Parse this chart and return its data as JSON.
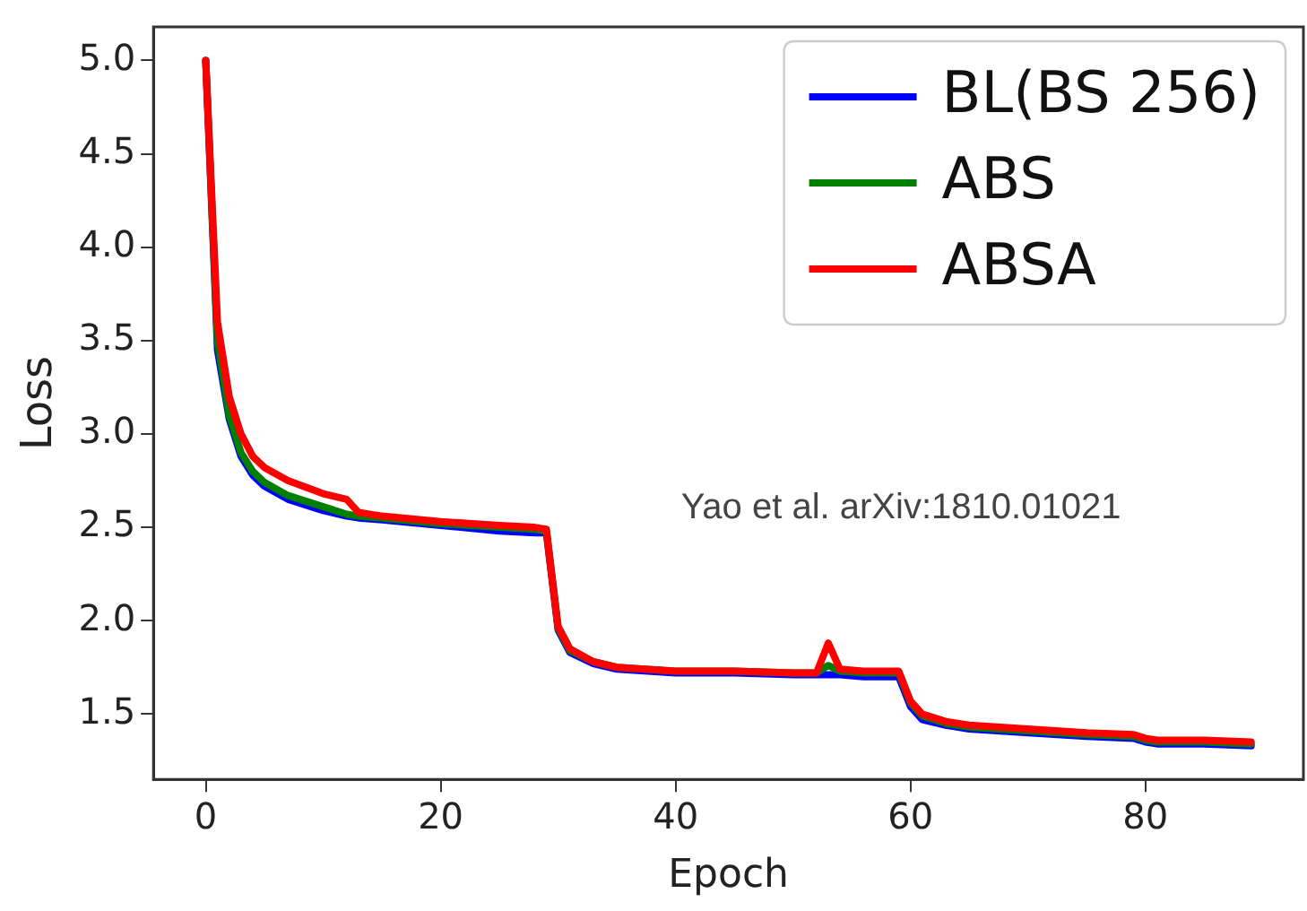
{
  "chart_data": {
    "type": "line",
    "xlabel": "Epoch",
    "ylabel": "Loss",
    "xlim": [
      -4.45,
      93.45
    ],
    "ylim": [
      1.15,
      5.18
    ],
    "xticks": [
      0,
      20,
      40,
      60,
      80
    ],
    "yticks": [
      1.5,
      {
        "value": 2,
        "label": "2.0"
      },
      2.5,
      {
        "value": 3,
        "label": "3.0"
      },
      3.5,
      {
        "value": 4,
        "label": "4.0"
      },
      4.5,
      {
        "value": 5,
        "label": "5.0"
      }
    ],
    "x": [
      0,
      1,
      2,
      3,
      4,
      5,
      7,
      10,
      12,
      13,
      15,
      20,
      25,
      28,
      29,
      30,
      31,
      33,
      35,
      40,
      45,
      50,
      52,
      53,
      54,
      56,
      59,
      60,
      61,
      63,
      65,
      70,
      75,
      79,
      80,
      81,
      85,
      89
    ],
    "series": [
      {
        "name": "BL(BS 256)",
        "color": "#0000ff",
        "values": [
          5.0,
          3.45,
          3.08,
          2.88,
          2.78,
          2.72,
          2.65,
          2.59,
          2.56,
          2.55,
          2.54,
          2.51,
          2.48,
          2.47,
          2.47,
          1.95,
          1.83,
          1.77,
          1.74,
          1.72,
          1.72,
          1.71,
          1.71,
          1.71,
          1.71,
          1.7,
          1.7,
          1.54,
          1.47,
          1.44,
          1.42,
          1.4,
          1.38,
          1.37,
          1.35,
          1.34,
          1.34,
          1.33
        ]
      },
      {
        "name": "ABS",
        "color": "#008000",
        "values": [
          5.0,
          3.5,
          3.1,
          2.9,
          2.8,
          2.74,
          2.67,
          2.61,
          2.57,
          2.56,
          2.55,
          2.52,
          2.5,
          2.49,
          2.48,
          1.96,
          1.84,
          1.78,
          1.75,
          1.73,
          1.73,
          1.72,
          1.72,
          1.76,
          1.73,
          1.72,
          1.72,
          1.56,
          1.49,
          1.45,
          1.43,
          1.41,
          1.39,
          1.38,
          1.36,
          1.35,
          1.35,
          1.34
        ]
      },
      {
        "name": "ABSA",
        "color": "#ff0000",
        "values": [
          5.0,
          3.6,
          3.2,
          3.0,
          2.88,
          2.82,
          2.75,
          2.68,
          2.65,
          2.58,
          2.56,
          2.53,
          2.51,
          2.5,
          2.49,
          1.97,
          1.85,
          1.78,
          1.75,
          1.73,
          1.73,
          1.72,
          1.72,
          1.88,
          1.74,
          1.73,
          1.73,
          1.57,
          1.5,
          1.46,
          1.44,
          1.42,
          1.4,
          1.39,
          1.37,
          1.36,
          1.36,
          1.35
        ]
      }
    ],
    "legend": "top right",
    "grid": false,
    "marker": "none",
    "line_style": "solid",
    "annotations": [
      "Yao et al. arXiv:1810.01021"
    ]
  }
}
